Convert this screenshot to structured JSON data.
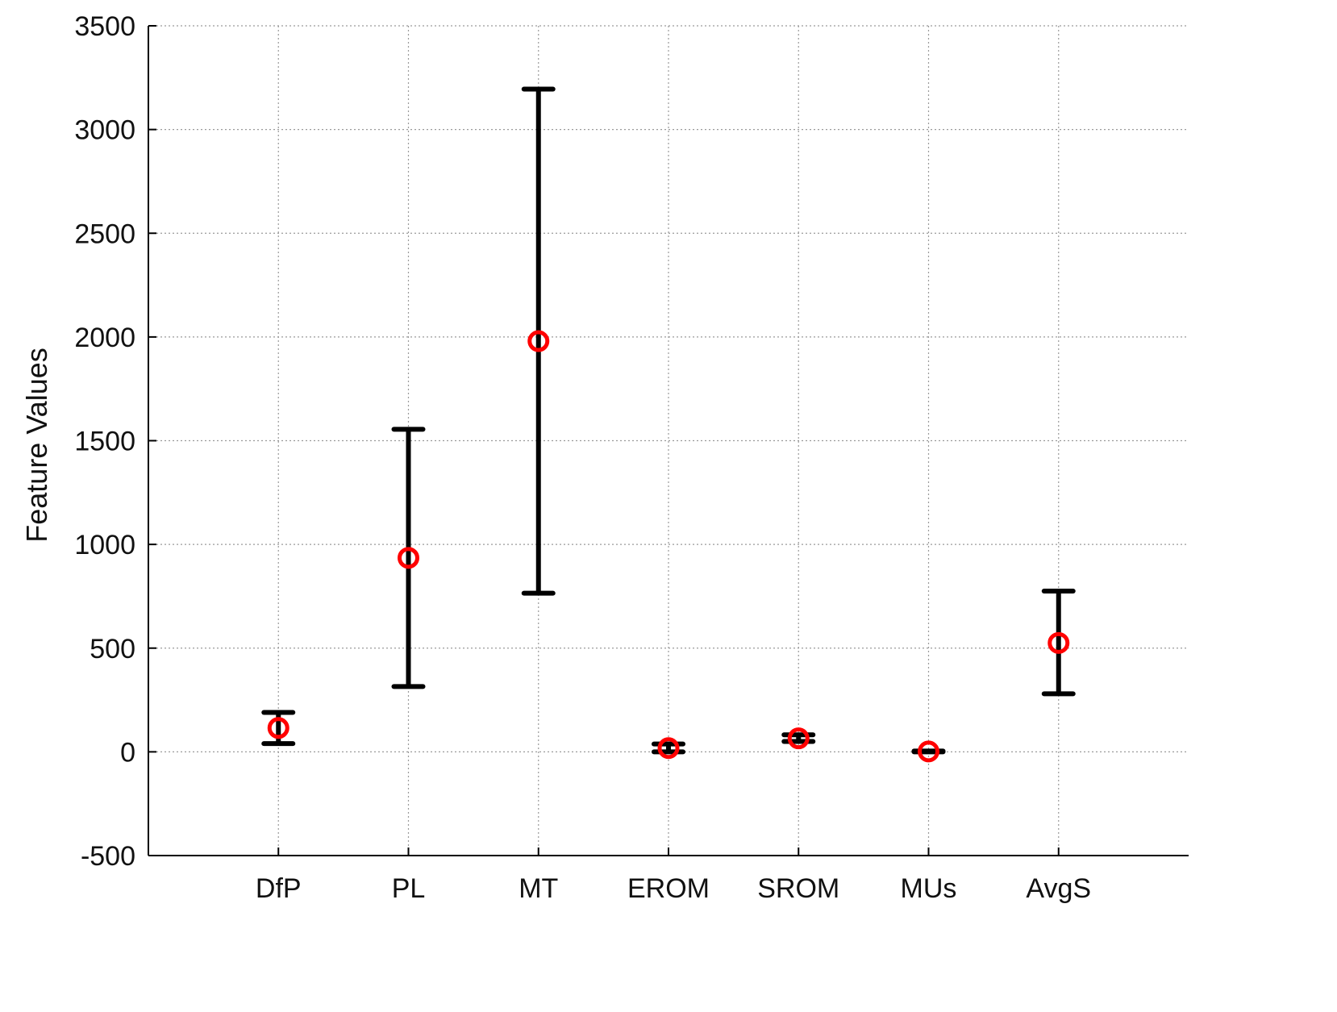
{
  "chart_data": {
    "type": "scatter",
    "title": "",
    "xlabel": "",
    "ylabel": "Feature Values",
    "ylim": [
      -500,
      3500
    ],
    "yticks": [
      -500,
      0,
      500,
      1000,
      1500,
      2000,
      2500,
      3000,
      3500
    ],
    "grid": true,
    "categories": [
      "DfP",
      "PL",
      "MT",
      "EROM",
      "SROM",
      "MUs",
      "AvgS"
    ],
    "mean": [
      115,
      935,
      1980,
      18,
      65,
      2,
      525
    ],
    "lower": [
      40,
      315,
      765,
      0,
      50,
      0,
      280
    ],
    "upper": [
      190,
      1555,
      3195,
      38,
      82,
      4,
      775
    ],
    "colors": {
      "marker": "#ff0000",
      "error_bar": "#000000"
    }
  }
}
